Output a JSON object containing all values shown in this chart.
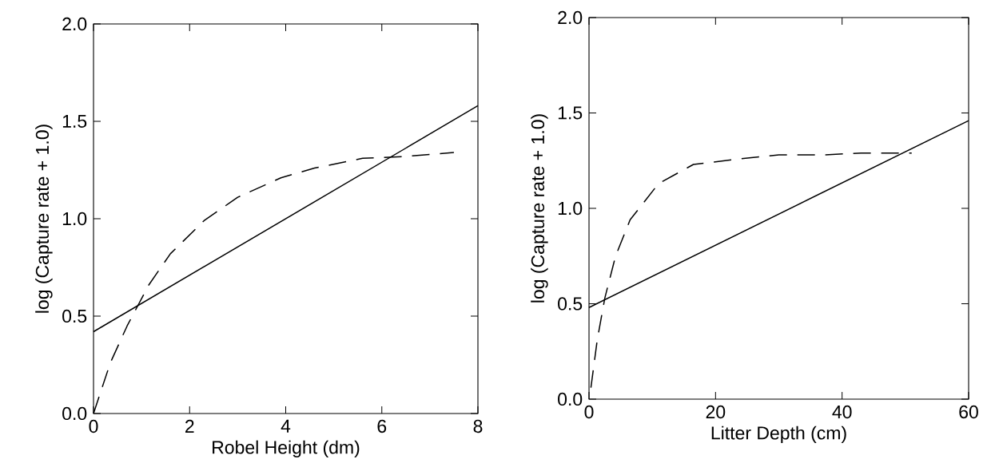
{
  "chart_data": [
    {
      "type": "line",
      "xlabel": "Robel Height (dm)",
      "ylabel": "log (Capture rate + 1.0)",
      "xlim": [
        0,
        8
      ],
      "ylim": [
        0,
        2.0
      ],
      "xticks": [
        0,
        2,
        4,
        6,
        8
      ],
      "yticks": [
        {
          "value": 0,
          "label": "0.0"
        },
        {
          "value": 0.5,
          "label": "0.5"
        },
        {
          "value": 1.0,
          "label": "1.0"
        },
        {
          "value": 1.5,
          "label": "1.5"
        },
        {
          "value": 2.0,
          "label": "2.0"
        }
      ],
      "marker": "none",
      "grid": false,
      "series": [
        {
          "color": "#000000",
          "line_style": "solid",
          "x": [
            0,
            8
          ],
          "values": [
            0.42,
            1.58
          ]
        },
        {
          "color": "#000000",
          "line_style": "dashed",
          "x": [
            0,
            0.35,
            0.7,
            1.15,
            1.6,
            2.3,
            3,
            3.9,
            4.6,
            5.6,
            6.5,
            7.5
          ],
          "values": [
            0,
            0.26,
            0.45,
            0.66,
            0.82,
            0.99,
            1.11,
            1.21,
            1.26,
            1.31,
            1.32,
            1.34
          ]
        }
      ]
    },
    {
      "type": "line",
      "xlabel": "Litter Depth (cm)",
      "ylabel": "log (Capture rate + 1.0)",
      "xlim": [
        0,
        60
      ],
      "ylim": [
        0,
        2.0
      ],
      "xticks": [
        0,
        20,
        40,
        60
      ],
      "yticks": [
        {
          "value": 0,
          "label": "0.0"
        },
        {
          "value": 0.5,
          "label": "0.5"
        },
        {
          "value": 1.0,
          "label": "1.0"
        },
        {
          "value": 1.5,
          "label": "1.5"
        },
        {
          "value": 2.0,
          "label": "2.0"
        }
      ],
      "marker": "none",
      "grid": false,
      "series": [
        {
          "color": "#000000",
          "line_style": "solid",
          "x": [
            0,
            60
          ],
          "values": [
            0.48,
            1.46
          ]
        },
        {
          "color": "#000000",
          "line_style": "dashed",
          "x": [
            0.3,
            1.3,
            2.5,
            4.2,
            6.5,
            11,
            16.5,
            24,
            30,
            37,
            43,
            51
          ],
          "values": [
            0.06,
            0.31,
            0.53,
            0.75,
            0.94,
            1.13,
            1.23,
            1.26,
            1.28,
            1.28,
            1.29,
            1.29
          ]
        }
      ]
    }
  ]
}
